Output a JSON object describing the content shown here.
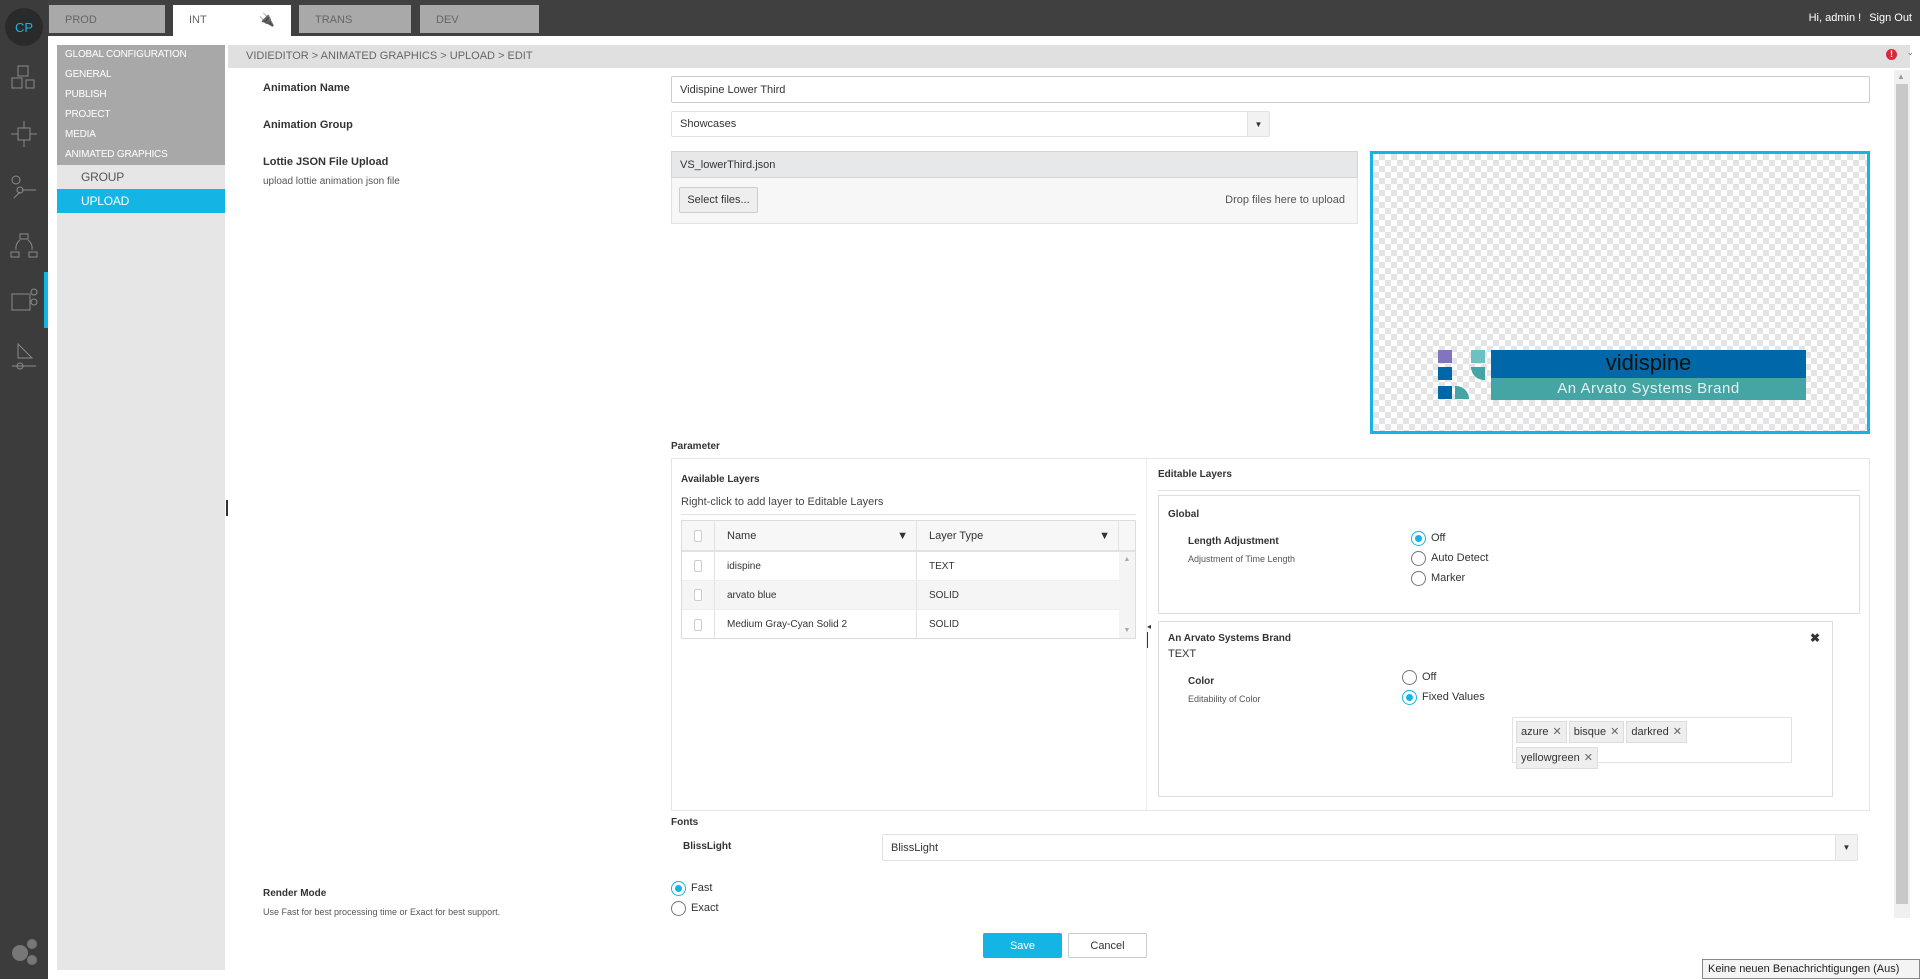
{
  "colors": {
    "accent": "#14b4e4",
    "topbar": "#404040",
    "menu_header": "#a8a8a8",
    "error": "#d9283c",
    "vidispine_blue": "#0068a8",
    "vidispine_teal": "#45a5a5"
  },
  "env_tabs": [
    {
      "label": "PROD"
    },
    {
      "label": "INT",
      "icon": "plug-icon",
      "active": true
    },
    {
      "label": "TRANS"
    },
    {
      "label": "DEV"
    }
  ],
  "user": {
    "greeting": "Hi, admin !",
    "sign_out": "Sign Out"
  },
  "rail": {
    "logo": "CP",
    "icons": [
      "cubes-icon",
      "network-icon",
      "workflow-icon",
      "cycle-icon",
      "video-edit-icon",
      "render-icon",
      "settings-icon"
    ]
  },
  "menu": {
    "items": [
      "GLOBAL CONFIGURATION",
      "GENERAL",
      "PUBLISH",
      "PROJECT",
      "MEDIA",
      "ANIMATED GRAPHICS"
    ],
    "sub_items": [
      {
        "label": "GROUP"
      },
      {
        "label": "UPLOAD",
        "active": true
      }
    ]
  },
  "breadcrumb": "VIDIEDITOR > ANIMATED GRAPHICS > UPLOAD > EDIT",
  "form": {
    "animation_name": {
      "label": "Animation Name",
      "value": "Vidispine Lower Third"
    },
    "animation_group": {
      "label": "Animation Group",
      "value": "Showcases"
    },
    "lottie": {
      "label": "Lottie JSON File Upload",
      "sub": "upload lottie animation json file",
      "file": "VS_lowerThird.json",
      "select_files": "Select files...",
      "drop_hint": "Drop files here to upload"
    },
    "preview": {
      "logo_text": "vidispine",
      "tagline": "An Arvato Systems Brand"
    },
    "parameter": {
      "label": "Parameter",
      "available": {
        "title": "Available Layers",
        "hint": "Right-click to add layer to Editable Layers",
        "columns": [
          "Name",
          "Layer Type"
        ],
        "rows": [
          [
            "idispine",
            "TEXT"
          ],
          [
            "arvato blue",
            "SOLID"
          ],
          [
            "Medium Gray-Cyan Solid 2",
            "SOLID"
          ]
        ]
      },
      "editable": {
        "title": "Editable Layers",
        "global": {
          "title": "Global",
          "label": "Length Adjustment",
          "sub": "Adjustment of Time Length",
          "options": [
            "Off",
            "Auto Detect",
            "Marker"
          ],
          "selected": 0
        },
        "layer": {
          "title": "An Arvato Systems Brand",
          "type": "TEXT",
          "label": "Color",
          "sub": "Editability of Color",
          "options": [
            "Off",
            "Fixed Values"
          ],
          "selected": 1,
          "tags": [
            "azure",
            "bisque",
            "darkred",
            "yellowgreen"
          ]
        }
      }
    },
    "fonts": {
      "label": "Fonts",
      "font_label": "BlissLight",
      "value": "BlissLight"
    },
    "render_mode": {
      "label": "Render Mode",
      "sub": "Use Fast for best processing time or Exact for best support.",
      "options": [
        "Fast",
        "Exact"
      ],
      "selected": 0
    },
    "save": "Save",
    "cancel": "Cancel"
  },
  "notification": "Keine neuen Benachrichtigungen (Aus)"
}
